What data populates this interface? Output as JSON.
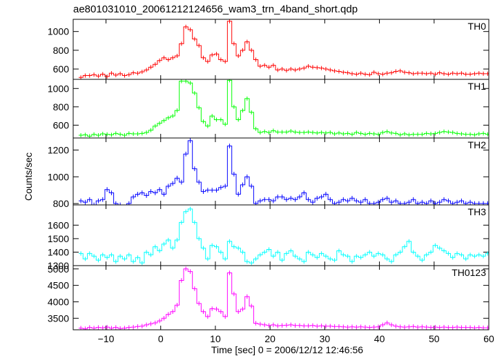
{
  "chart_data": {
    "type": "line",
    "title": "ae801031010_20061212124656_wam3_trn_4band_short.qdp",
    "xlabel": "Time [sec] 0 = 2006/12/12 12:46:56",
    "ylabel": "Counts/sec",
    "xlim": [
      -16,
      60
    ],
    "x_ticks": [
      -10,
      0,
      10,
      20,
      30,
      40,
      50,
      60
    ],
    "bin_width_sec": 1,
    "x_start": -15,
    "grid": false,
    "panels": [
      {
        "name": "TH0",
        "color": "#ff0000",
        "ylim": [
          490,
          1130
        ],
        "y_ticks": [
          600,
          800,
          1000
        ],
        "values": [
          510,
          530,
          530,
          540,
          525,
          545,
          520,
          555,
          535,
          550,
          530,
          540,
          560,
          555,
          570,
          590,
          620,
          650,
          690,
          720,
          700,
          720,
          740,
          870,
          1050,
          1020,
          920,
          850,
          720,
          680,
          750,
          760,
          700,
          680,
          1110,
          870,
          740,
          800,
          890,
          800,
          700,
          630,
          640,
          620,
          640,
          590,
          600,
          585,
          600,
          590,
          600,
          610,
          630,
          620,
          615,
          610,
          600,
          590,
          580,
          575,
          565,
          560,
          550,
          545,
          555,
          545,
          540,
          565,
          550,
          545,
          555,
          560,
          575,
          580,
          565,
          560,
          550,
          555,
          555,
          550,
          555,
          545,
          560,
          550,
          545,
          555,
          550,
          555,
          545,
          545,
          550,
          555,
          550,
          550
        ]
      },
      {
        "name": "TH1",
        "color": "#00ff00",
        "ylim": [
          460,
          1100
        ],
        "y_ticks": [
          600,
          800,
          1000
        ],
        "values": [
          490,
          495,
          480,
          500,
          490,
          505,
          500,
          495,
          510,
          500,
          490,
          510,
          505,
          505,
          510,
          520,
          545,
          590,
          620,
          650,
          680,
          700,
          760,
          1080,
          1080,
          1060,
          950,
          790,
          640,
          590,
          700,
          660,
          660,
          610,
          1090,
          800,
          660,
          760,
          890,
          740,
          560,
          520,
          530,
          520,
          540,
          525,
          525,
          525,
          535,
          525,
          520,
          520,
          525,
          520,
          515,
          520,
          515,
          520,
          505,
          515,
          505,
          510,
          500,
          520,
          510,
          500,
          510,
          505,
          500,
          520,
          530,
          515,
          510,
          495,
          505,
          495,
          500,
          500,
          500,
          510,
          505,
          510,
          520,
          530,
          525,
          520,
          510,
          505,
          500,
          500,
          495,
          505,
          510,
          500
        ]
      },
      {
        "name": "TH2",
        "color": "#0000ff",
        "ylim": [
          790,
          1290
        ],
        "y_ticks": [
          800,
          1000,
          1200
        ],
        "values": [
          820,
          810,
          830,
          790,
          820,
          830,
          905,
          880,
          800,
          790,
          770,
          800,
          850,
          870,
          880,
          860,
          890,
          880,
          905,
          870,
          930,
          950,
          990,
          960,
          1170,
          1270,
          1060,
          960,
          890,
          900,
          900,
          900,
          920,
          930,
          1230,
          1020,
          870,
          940,
          1000,
          930,
          800,
          820,
          830,
          830,
          820,
          850,
          850,
          830,
          840,
          830,
          850,
          880,
          830,
          810,
          840,
          850,
          870,
          830,
          800,
          810,
          830,
          820,
          840,
          820,
          810,
          830,
          800,
          800,
          810,
          830,
          840,
          810,
          820,
          800,
          800,
          810,
          830,
          800,
          810,
          800,
          820,
          800,
          810,
          830,
          820,
          800,
          810,
          820,
          800,
          810,
          800,
          800,
          800,
          800
        ]
      },
      {
        "name": "TH3",
        "color": "#00ffff",
        "ylim": [
          1300,
          1750
        ],
        "y_ticks": [
          1300,
          1400,
          1500,
          1600
        ],
        "values": [
          1390,
          1350,
          1390,
          1370,
          1340,
          1380,
          1360,
          1380,
          1330,
          1370,
          1350,
          1380,
          1330,
          1360,
          1320,
          1400,
          1380,
          1440,
          1410,
          1460,
          1490,
          1430,
          1490,
          1620,
          1700,
          1720,
          1620,
          1500,
          1430,
          1350,
          1450,
          1440,
          1400,
          1350,
          1480,
          1440,
          1430,
          1400,
          1330,
          1320,
          1350,
          1380,
          1400,
          1420,
          1370,
          1400,
          1340,
          1390,
          1410,
          1370,
          1350,
          1330,
          1400,
          1380,
          1360,
          1390,
          1370,
          1350,
          1340,
          1410,
          1380,
          1370,
          1330,
          1370,
          1360,
          1380,
          1400,
          1370,
          1390,
          1380,
          1350,
          1330,
          1380,
          1400,
          1440,
          1480,
          1400,
          1370,
          1340,
          1380,
          1400,
          1450,
          1430,
          1410,
          1390,
          1360,
          1390,
          1380,
          1350,
          1380,
          1370,
          1380,
          1370,
          1390
        ]
      },
      {
        "name": "TH0123",
        "color": "#ff00ff",
        "ylim": [
          3150,
          5100
        ],
        "y_ticks": [
          3500,
          4000,
          4500,
          5000
        ],
        "values": [
          3200,
          3180,
          3220,
          3200,
          3220,
          3210,
          3230,
          3200,
          3220,
          3190,
          3200,
          3220,
          3230,
          3250,
          3260,
          3300,
          3330,
          3360,
          3420,
          3500,
          3620,
          3700,
          3900,
          4650,
          5000,
          4920,
          4400,
          3950,
          3700,
          3550,
          3790,
          3780,
          3700,
          3550,
          4880,
          4240,
          3700,
          3780,
          4160,
          3870,
          3350,
          3320,
          3300,
          3280,
          3300,
          3270,
          3280,
          3290,
          3300,
          3280,
          3280,
          3270,
          3270,
          3280,
          3260,
          3270,
          3260,
          3260,
          3250,
          3250,
          3240,
          3230,
          3240,
          3230,
          3240,
          3230,
          3220,
          3230,
          3240,
          3300,
          3360,
          3300,
          3260,
          3240,
          3230,
          3240,
          3250,
          3230,
          3240,
          3230,
          3220,
          3230,
          3220,
          3230,
          3220,
          3220,
          3230,
          3220,
          3220,
          3220,
          3210,
          3220,
          3210,
          3210
        ]
      }
    ]
  }
}
